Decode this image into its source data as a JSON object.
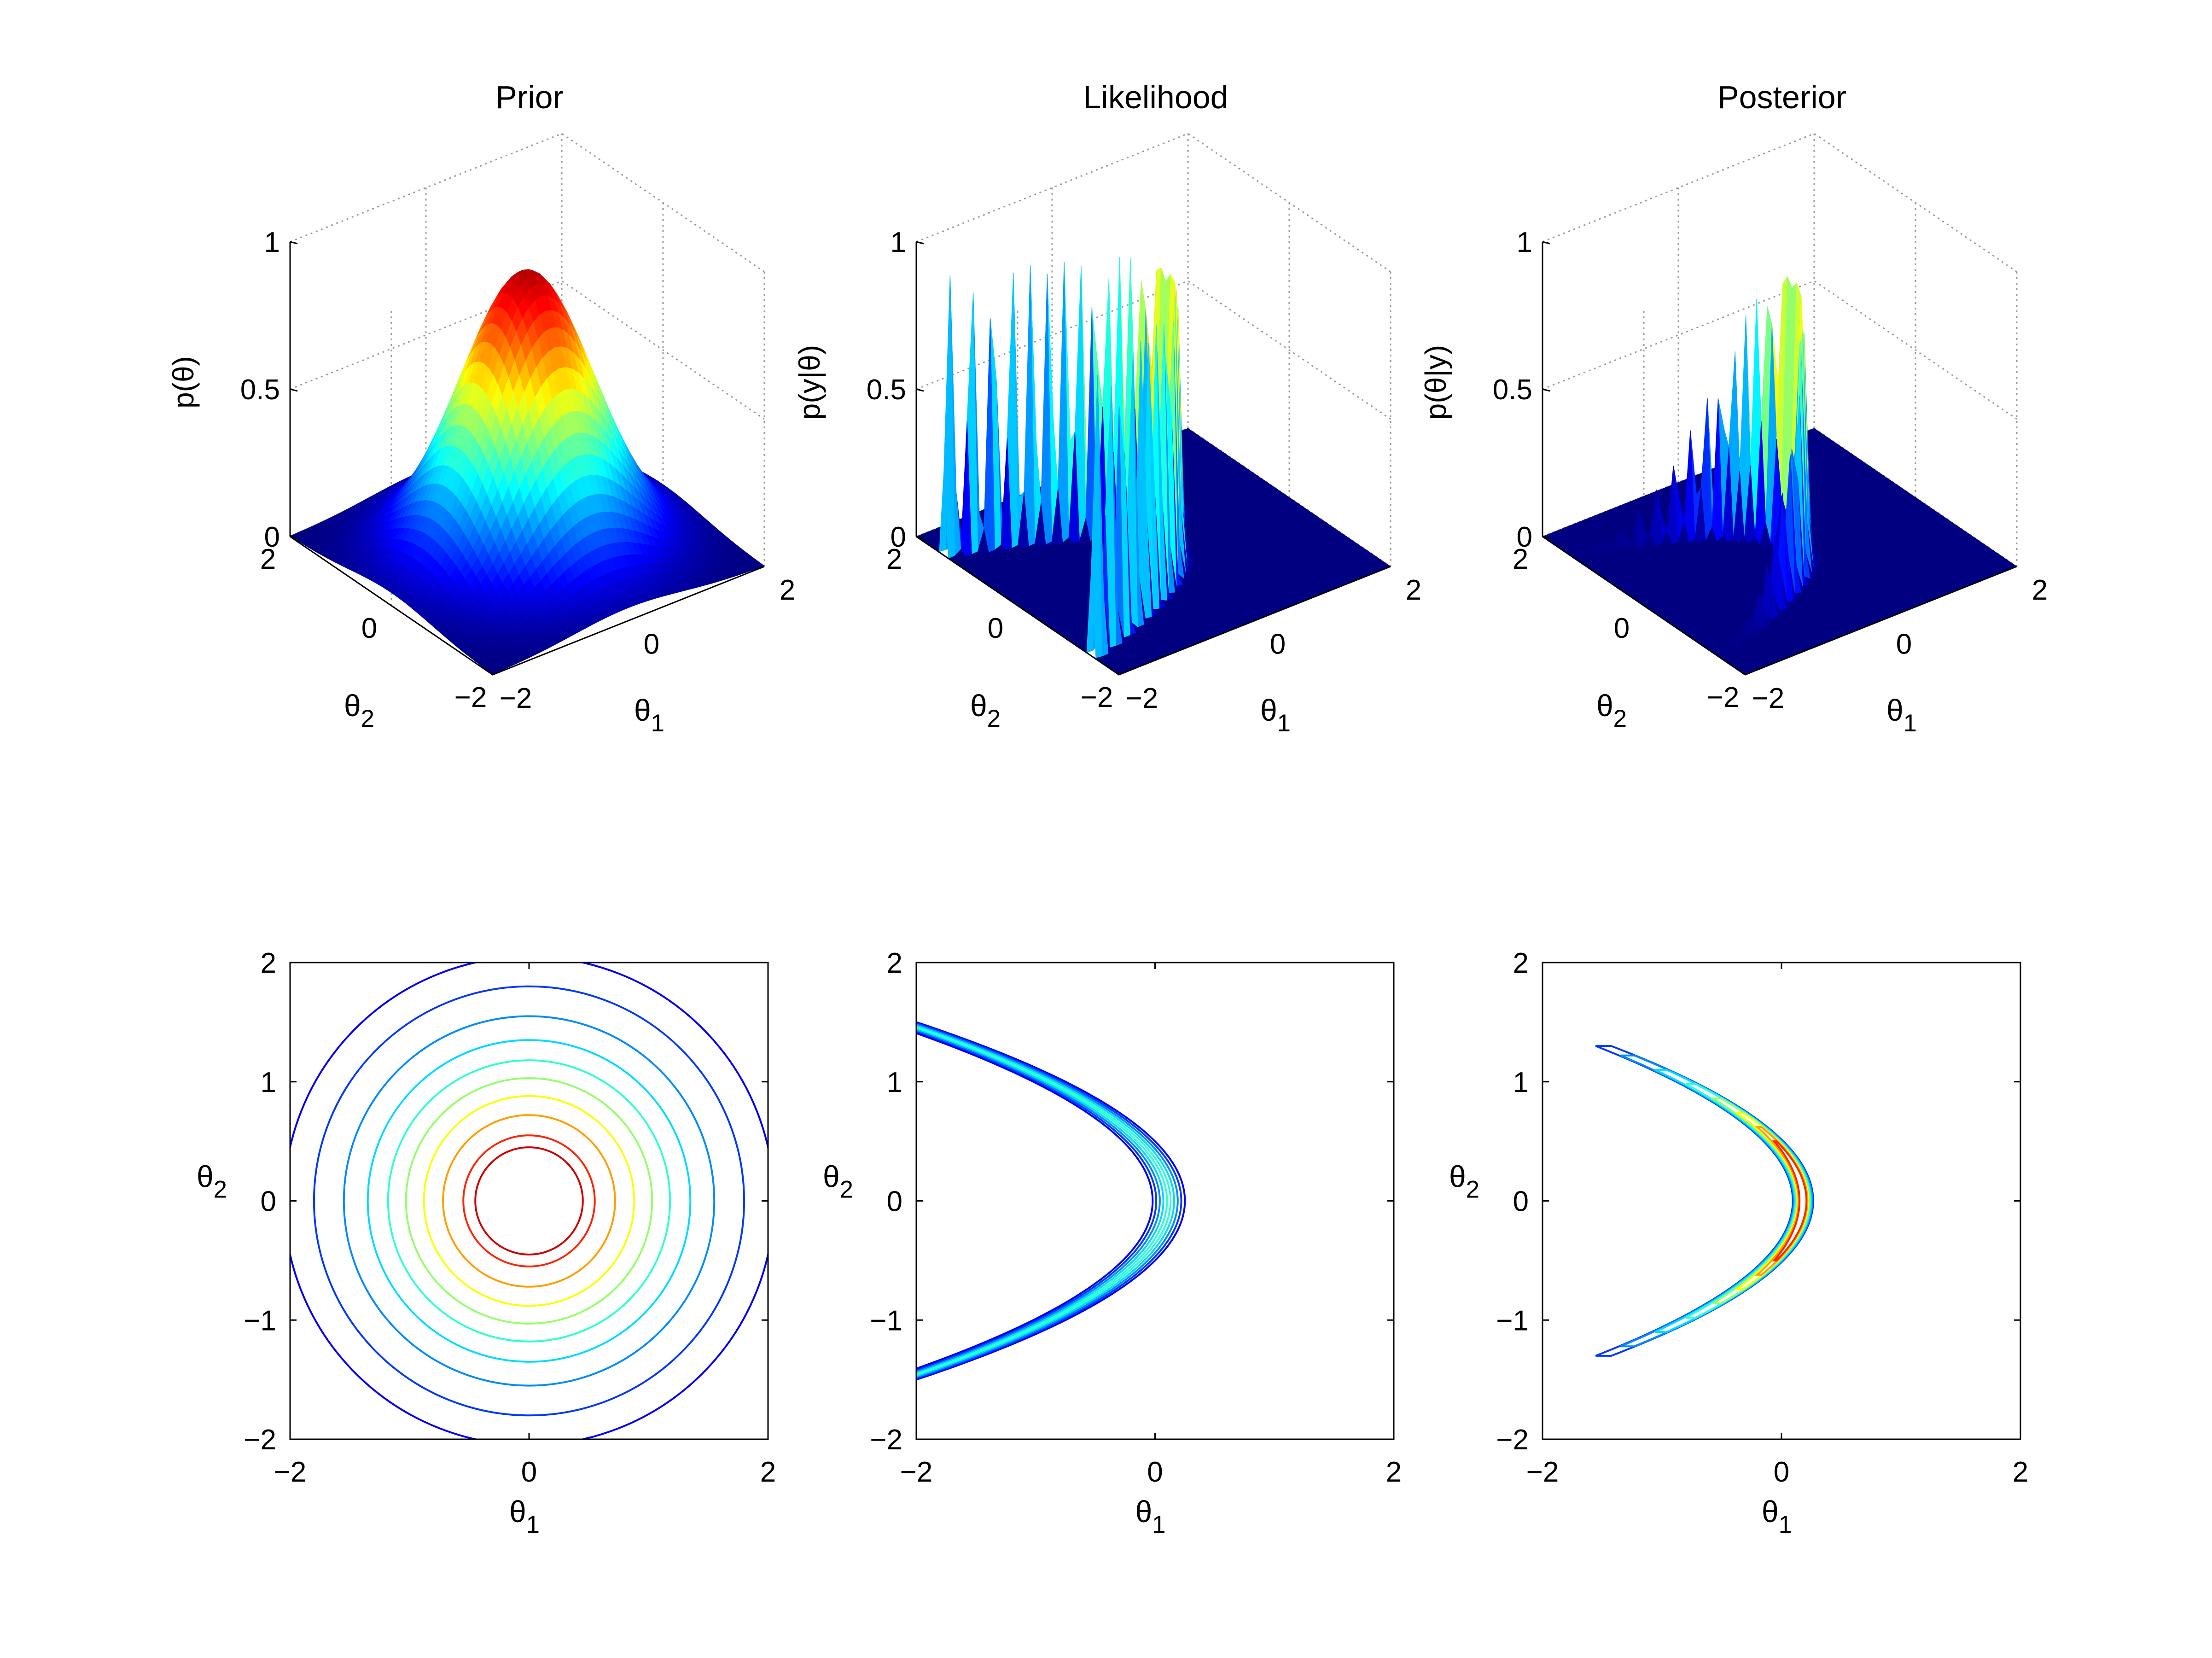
{
  "chart_data": [
    {
      "type": "surface",
      "title": "Prior",
      "xlabel": "θ",
      "xlabel_sub": "1",
      "ylabel": "θ",
      "ylabel_sub": "2",
      "zlabel": "p(θ)",
      "xlim": [
        -2,
        2
      ],
      "ylim": [
        -2,
        2
      ],
      "zlim": [
        0,
        1
      ],
      "xticks": [
        "−2",
        "0",
        "2"
      ],
      "yticks": [
        "−2",
        "0",
        "2"
      ],
      "zticks": [
        "0",
        "0.5",
        "1"
      ],
      "colormap": "jet",
      "grid": true,
      "peak": {
        "x": 0,
        "y": 0,
        "z": 0.95
      }
    },
    {
      "type": "surface",
      "title": "Likelihood",
      "xlabel": "θ",
      "xlabel_sub": "1",
      "ylabel": "θ",
      "ylabel_sub": "2",
      "zlabel": "p(y|θ)",
      "xlim": [
        -2,
        2
      ],
      "ylim": [
        -2,
        2
      ],
      "zlim": [
        0,
        1
      ],
      "xticks": [
        "−2",
        "0",
        "2"
      ],
      "yticks": [
        "−2",
        "0",
        "2"
      ],
      "zticks": [
        "0",
        "0.5",
        "1"
      ],
      "colormap": "jet",
      "grid": true,
      "ridge": "θ1 ≈ 0.2 − θ2², height ≈ 0.95"
    },
    {
      "type": "surface",
      "title": "Posterior",
      "xlabel": "θ",
      "xlabel_sub": "1",
      "ylabel": "θ",
      "ylabel_sub": "2",
      "zlabel": "p(θ|y)",
      "xlim": [
        -2,
        2
      ],
      "ylim": [
        -2,
        2
      ],
      "zlim": [
        0,
        1
      ],
      "xticks": [
        "−2",
        "0",
        "2"
      ],
      "yticks": [
        "−2",
        "0",
        "2"
      ],
      "zticks": [
        "0",
        "0.5",
        "1"
      ],
      "colormap": "jet",
      "grid": true,
      "peak": {
        "x": 0.2,
        "y": 0,
        "z": 0.95
      }
    },
    {
      "type": "contour",
      "title": "",
      "xlabel": "θ",
      "xlabel_sub": "1",
      "ylabel": "θ",
      "ylabel_sub": "2",
      "xlim": [
        -2,
        2
      ],
      "ylim": [
        -2,
        2
      ],
      "xticks": [
        "−2",
        "0",
        "2"
      ],
      "yticks": [
        "−2",
        "−1",
        "0",
        "1",
        "2"
      ],
      "colormap": "jet",
      "contour_radii": [
        2.05,
        1.8,
        1.55,
        1.35,
        1.18,
        1.03,
        0.88,
        0.72,
        0.55,
        0.45
      ]
    },
    {
      "type": "contour",
      "title": "",
      "xlabel": "θ",
      "xlabel_sub": "1",
      "ylabel": "θ",
      "ylabel_sub": "2",
      "xlim": [
        -2,
        2
      ],
      "ylim": [
        -2,
        2
      ],
      "xticks": [
        "−2",
        "0",
        "2"
      ],
      "yticks": [
        "−2",
        "−1",
        "0",
        "1",
        "2"
      ],
      "colormap": "jet",
      "curve": "θ1 = c − θ2²",
      "contour_offsets": [
        0.25,
        0.22,
        0.19,
        0.16,
        0.13,
        0.1,
        0.07,
        0.04,
        0.01,
        -0.02
      ]
    },
    {
      "type": "contour",
      "title": "",
      "xlabel": "θ",
      "xlabel_sub": "1",
      "ylabel": "θ",
      "ylabel_sub": "2",
      "xlim": [
        -2,
        2
      ],
      "ylim": [
        -2,
        2
      ],
      "xticks": [
        "−2",
        "0",
        "2"
      ],
      "yticks": [
        "−2",
        "−1",
        "0",
        "1",
        "2"
      ],
      "colormap": "jet",
      "curve": "θ1 = c − θ2²",
      "contour_extent_θ2": [
        1.3,
        1.22,
        1.1,
        0.98,
        0.86,
        0.74,
        0.62,
        0.5
      ]
    }
  ]
}
